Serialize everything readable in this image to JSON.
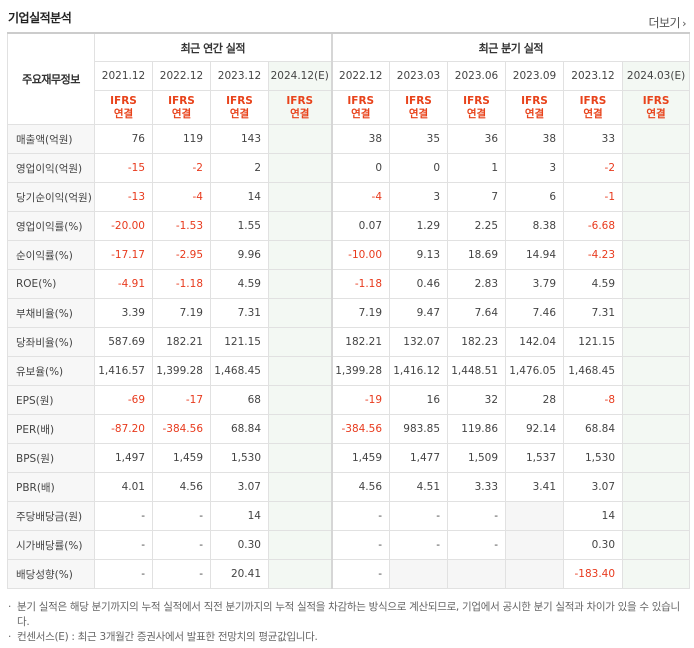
{
  "header": {
    "title": "기업실적분석",
    "more_label": "더보기"
  },
  "table": {
    "row_header_label": "주요재무정보",
    "group_annual": "최근 연간 실적",
    "group_quarter": "최근 분기 실적",
    "periods": [
      "2021.12",
      "2022.12",
      "2023.12",
      "2024.12(E)",
      "2022.12",
      "2023.03",
      "2023.06",
      "2023.09",
      "2023.12",
      "2024.03(E)"
    ],
    "accounting_top": "IFRS",
    "accounting_bottom": "연결",
    "rows": [
      {
        "label": "매출액(억원)",
        "values": [
          "76",
          "119",
          "143",
          "",
          "38",
          "35",
          "36",
          "38",
          "33",
          ""
        ]
      },
      {
        "label": "영업이익(억원)",
        "values": [
          "-15",
          "-2",
          "2",
          "",
          "0",
          "0",
          "1",
          "3",
          "-2",
          ""
        ]
      },
      {
        "label": "당기순이익(억원)",
        "values": [
          "-13",
          "-4",
          "14",
          "",
          "-4",
          "3",
          "7",
          "6",
          "-1",
          ""
        ]
      },
      {
        "label": "영업이익률(%)",
        "values": [
          "-20.00",
          "-1.53",
          "1.55",
          "",
          "0.07",
          "1.29",
          "2.25",
          "8.38",
          "-6.68",
          ""
        ]
      },
      {
        "label": "순이익률(%)",
        "values": [
          "-17.17",
          "-2.95",
          "9.96",
          "",
          "-10.00",
          "9.13",
          "18.69",
          "14.94",
          "-4.23",
          ""
        ]
      },
      {
        "label": "ROE(%)",
        "values": [
          "-4.91",
          "-1.18",
          "4.59",
          "",
          "-1.18",
          "0.46",
          "2.83",
          "3.79",
          "4.59",
          ""
        ]
      },
      {
        "label": "부채비율(%)",
        "values": [
          "3.39",
          "7.19",
          "7.31",
          "",
          "7.19",
          "9.47",
          "7.64",
          "7.46",
          "7.31",
          ""
        ]
      },
      {
        "label": "당좌비율(%)",
        "values": [
          "587.69",
          "182.21",
          "121.15",
          "",
          "182.21",
          "132.07",
          "182.23",
          "142.04",
          "121.15",
          ""
        ]
      },
      {
        "label": "유보율(%)",
        "values": [
          "1,416.57",
          "1,399.28",
          "1,468.45",
          "",
          "1,399.28",
          "1,416.12",
          "1,448.51",
          "1,476.05",
          "1,468.45",
          ""
        ]
      },
      {
        "label": "EPS(원)",
        "values": [
          "-69",
          "-17",
          "68",
          "",
          "-19",
          "16",
          "32",
          "28",
          "-8",
          ""
        ]
      },
      {
        "label": "PER(배)",
        "values": [
          "-87.20",
          "-384.56",
          "68.84",
          "",
          "-384.56",
          "983.85",
          "119.86",
          "92.14",
          "68.84",
          ""
        ]
      },
      {
        "label": "BPS(원)",
        "values": [
          "1,497",
          "1,459",
          "1,530",
          "",
          "1,459",
          "1,477",
          "1,509",
          "1,537",
          "1,530",
          ""
        ]
      },
      {
        "label": "PBR(배)",
        "values": [
          "4.01",
          "4.56",
          "3.07",
          "",
          "4.56",
          "4.51",
          "3.33",
          "3.41",
          "3.07",
          ""
        ]
      },
      {
        "label": "주당배당금(원)",
        "values": [
          "-",
          "-",
          "14",
          "",
          "-",
          "-",
          "-",
          "",
          "14",
          ""
        ]
      },
      {
        "label": "시가배당률(%)",
        "values": [
          "-",
          "-",
          "0.30",
          "",
          "-",
          "-",
          "-",
          "",
          "0.30",
          ""
        ]
      },
      {
        "label": "배당성향(%)",
        "values": [
          "-",
          "-",
          "20.41",
          "",
          "-",
          "",
          "",
          "",
          "-183.40",
          ""
        ]
      }
    ]
  },
  "notes": [
    "분기 실적은 해당 분기까지의 누적 실적에서 직전 분기까지의 누적 실적을 차감하는 방식으로 계산되므로, 기업에서 공시한 분기 실적과 차이가 있을 수 있습니다.",
    "컨센서스(E) : 최근 3개월간 증권사에서 발표한 전망치의 평균값입니다."
  ],
  "colors": {
    "negative": "#e83a1d",
    "accent": "#e8431b",
    "estimate_bg": "#f3f8f3"
  }
}
